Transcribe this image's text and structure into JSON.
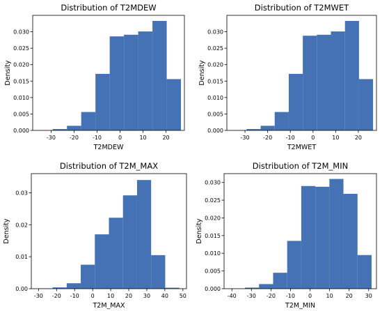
{
  "chart_data": [
    {
      "type": "bar",
      "title": "Distribution of T2MDEW",
      "xlabel": "T2MDEW",
      "ylabel": "Density",
      "xlim": [
        -38,
        28
      ],
      "ylim": [
        0,
        0.035
      ],
      "xticks": [
        -30,
        -20,
        -10,
        0,
        10,
        20
      ],
      "yticks": [
        0.0,
        0.005,
        0.01,
        0.015,
        0.02,
        0.025,
        0.03
      ],
      "ytick_labels": [
        "0.000",
        "0.005",
        "0.010",
        "0.015",
        "0.020",
        "0.025",
        "0.030"
      ],
      "bin_edges": [
        -35,
        -29.3,
        -23.1,
        -16.9,
        -10.7,
        -4.5,
        1.7,
        7.9,
        14.1,
        20.3,
        26.5
      ],
      "values": [
        5e-05,
        0.0004,
        0.0014,
        0.0056,
        0.0172,
        0.0286,
        0.0291,
        0.0301,
        0.0333,
        0.0156
      ],
      "grid": false,
      "bar_color": "#4472b4"
    },
    {
      "type": "bar",
      "title": "Distribution of T2MWET",
      "xlabel": "T2MWET",
      "ylabel": "Density",
      "xlim": [
        -38,
        28
      ],
      "ylim": [
        0,
        0.035
      ],
      "xticks": [
        -30,
        -20,
        -10,
        0,
        10,
        20
      ],
      "yticks": [
        0.0,
        0.005,
        0.01,
        0.015,
        0.02,
        0.025,
        0.03
      ],
      "ytick_labels": [
        "0.000",
        "0.005",
        "0.010",
        "0.015",
        "0.020",
        "0.025",
        "0.030"
      ],
      "bin_edges": [
        -35,
        -29.3,
        -23.1,
        -16.9,
        -10.7,
        -4.5,
        1.7,
        7.9,
        14.1,
        20.3,
        26.5
      ],
      "values": [
        5e-05,
        0.0004,
        0.0014,
        0.0056,
        0.0172,
        0.0288,
        0.0291,
        0.0301,
        0.0333,
        0.0156
      ],
      "grid": false,
      "bar_color": "#4472b4"
    },
    {
      "type": "bar",
      "title": "Distribution of T2M_MAX",
      "xlabel": "T2M_MAX",
      "ylabel": "Density",
      "xlim": [
        -34,
        52
      ],
      "ylim": [
        0,
        0.036
      ],
      "xticks": [
        -30,
        -20,
        -10,
        0,
        10,
        20,
        30,
        40,
        50
      ],
      "yticks": [
        0.0,
        0.01,
        0.02,
        0.03
      ],
      "ytick_labels": [
        "0.00",
        "0.01",
        "0.02",
        "0.03"
      ],
      "bin_edges": [
        -30,
        -22.2,
        -14.4,
        -6.6,
        1.2,
        9,
        16.8,
        24.6,
        32.4,
        40.2,
        48
      ],
      "values": [
        0.0001,
        0.0004,
        0.0017,
        0.0075,
        0.017,
        0.0222,
        0.0292,
        0.034,
        0.0105,
        0.0003
      ],
      "grid": false,
      "bar_color": "#4472b4"
    },
    {
      "type": "bar",
      "title": "Distribution of T2M_MIN",
      "xlabel": "T2M_MIN",
      "ylabel": "Density",
      "xlim": [
        -44,
        34
      ],
      "ylim": [
        0,
        0.0325
      ],
      "xticks": [
        -40,
        -30,
        -20,
        -10,
        0,
        10,
        20,
        30
      ],
      "yticks": [
        0.0,
        0.005,
        0.01,
        0.015,
        0.02,
        0.025,
        0.03
      ],
      "ytick_labels": [
        "0.000",
        "0.005",
        "0.010",
        "0.015",
        "0.020",
        "0.025",
        "0.030"
      ],
      "bin_edges": [
        -40.5,
        -33.3,
        -26.1,
        -18.9,
        -11.7,
        -4.5,
        2.7,
        9.9,
        17.1,
        24.3,
        31.5
      ],
      "values": [
        5e-05,
        0.0003,
        0.0013,
        0.0045,
        0.0135,
        0.029,
        0.0288,
        0.031,
        0.0268,
        0.0095
      ],
      "grid": false,
      "bar_color": "#4472b4"
    }
  ]
}
